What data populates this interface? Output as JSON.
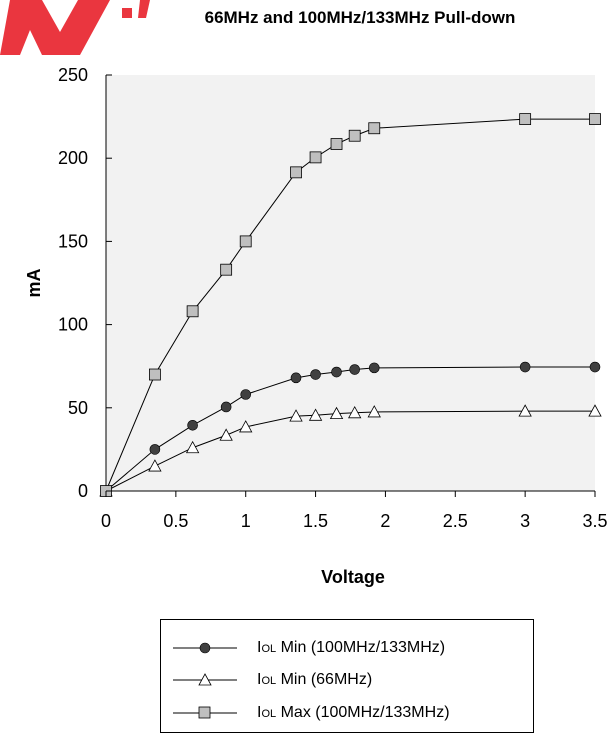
{
  "title": "66MHz and 100MHz/133MHz Pull-down",
  "colors": {
    "plot_bg": "#f2f2f2",
    "square_fill": "#bfbfbf",
    "circle_fill": "#404040",
    "watermark": "#e8202a"
  },
  "chart_data": {
    "type": "line",
    "title": "66MHz and 100MHz/133MHz Pull-down",
    "xlabel": "Voltage",
    "ylabel": "mA",
    "xlim": [
      0,
      3.5
    ],
    "ylim": [
      0,
      250
    ],
    "xticks": [
      "0",
      "0.5",
      "1",
      "1.5",
      "2",
      "2.5",
      "3",
      "3.5"
    ],
    "yticks": [
      "0",
      "50",
      "100",
      "150",
      "200",
      "250"
    ],
    "grid": false,
    "legend_position": "bottom",
    "series": [
      {
        "name": "IOL Min (100MHz/133MHz)",
        "marker": "circle",
        "x": [
          0,
          0.35,
          0.62,
          0.86,
          1.0,
          1.36,
          1.5,
          1.65,
          1.78,
          1.92,
          3.0,
          3.5
        ],
        "y": [
          0,
          25,
          39.5,
          50.5,
          58,
          68,
          70,
          71.5,
          73,
          74,
          74.5,
          74.5
        ]
      },
      {
        "name": "IOL Min (66MHz)",
        "marker": "triangle",
        "x": [
          0,
          0.35,
          0.62,
          0.86,
          1.0,
          1.36,
          1.5,
          1.65,
          1.78,
          1.92,
          3.0,
          3.5
        ],
        "y": [
          0,
          15,
          26,
          33.5,
          38.5,
          45,
          45.5,
          46.5,
          47,
          47.5,
          48,
          48
        ]
      },
      {
        "name": "IOL Max (100MHz/133MHz)",
        "marker": "square",
        "x": [
          0,
          0.35,
          0.62,
          0.86,
          1.0,
          1.36,
          1.5,
          1.65,
          1.78,
          1.92,
          3.0,
          3.5
        ],
        "y": [
          0,
          70,
          108,
          133,
          150,
          191.5,
          200.5,
          208.5,
          213.5,
          218,
          223.5,
          223.5
        ]
      }
    ]
  },
  "legend": {
    "items": [
      {
        "prefix": "I",
        "sub": "OL",
        "label": " Min (100MHz/133MHz)",
        "marker": "circle"
      },
      {
        "prefix": "I",
        "sub": "OL",
        "label": " Min (66MHz)",
        "marker": "triangle"
      },
      {
        "prefix": "I",
        "sub": "OL",
        "label": " Max (100MHz/133MHz)",
        "marker": "square"
      }
    ]
  }
}
